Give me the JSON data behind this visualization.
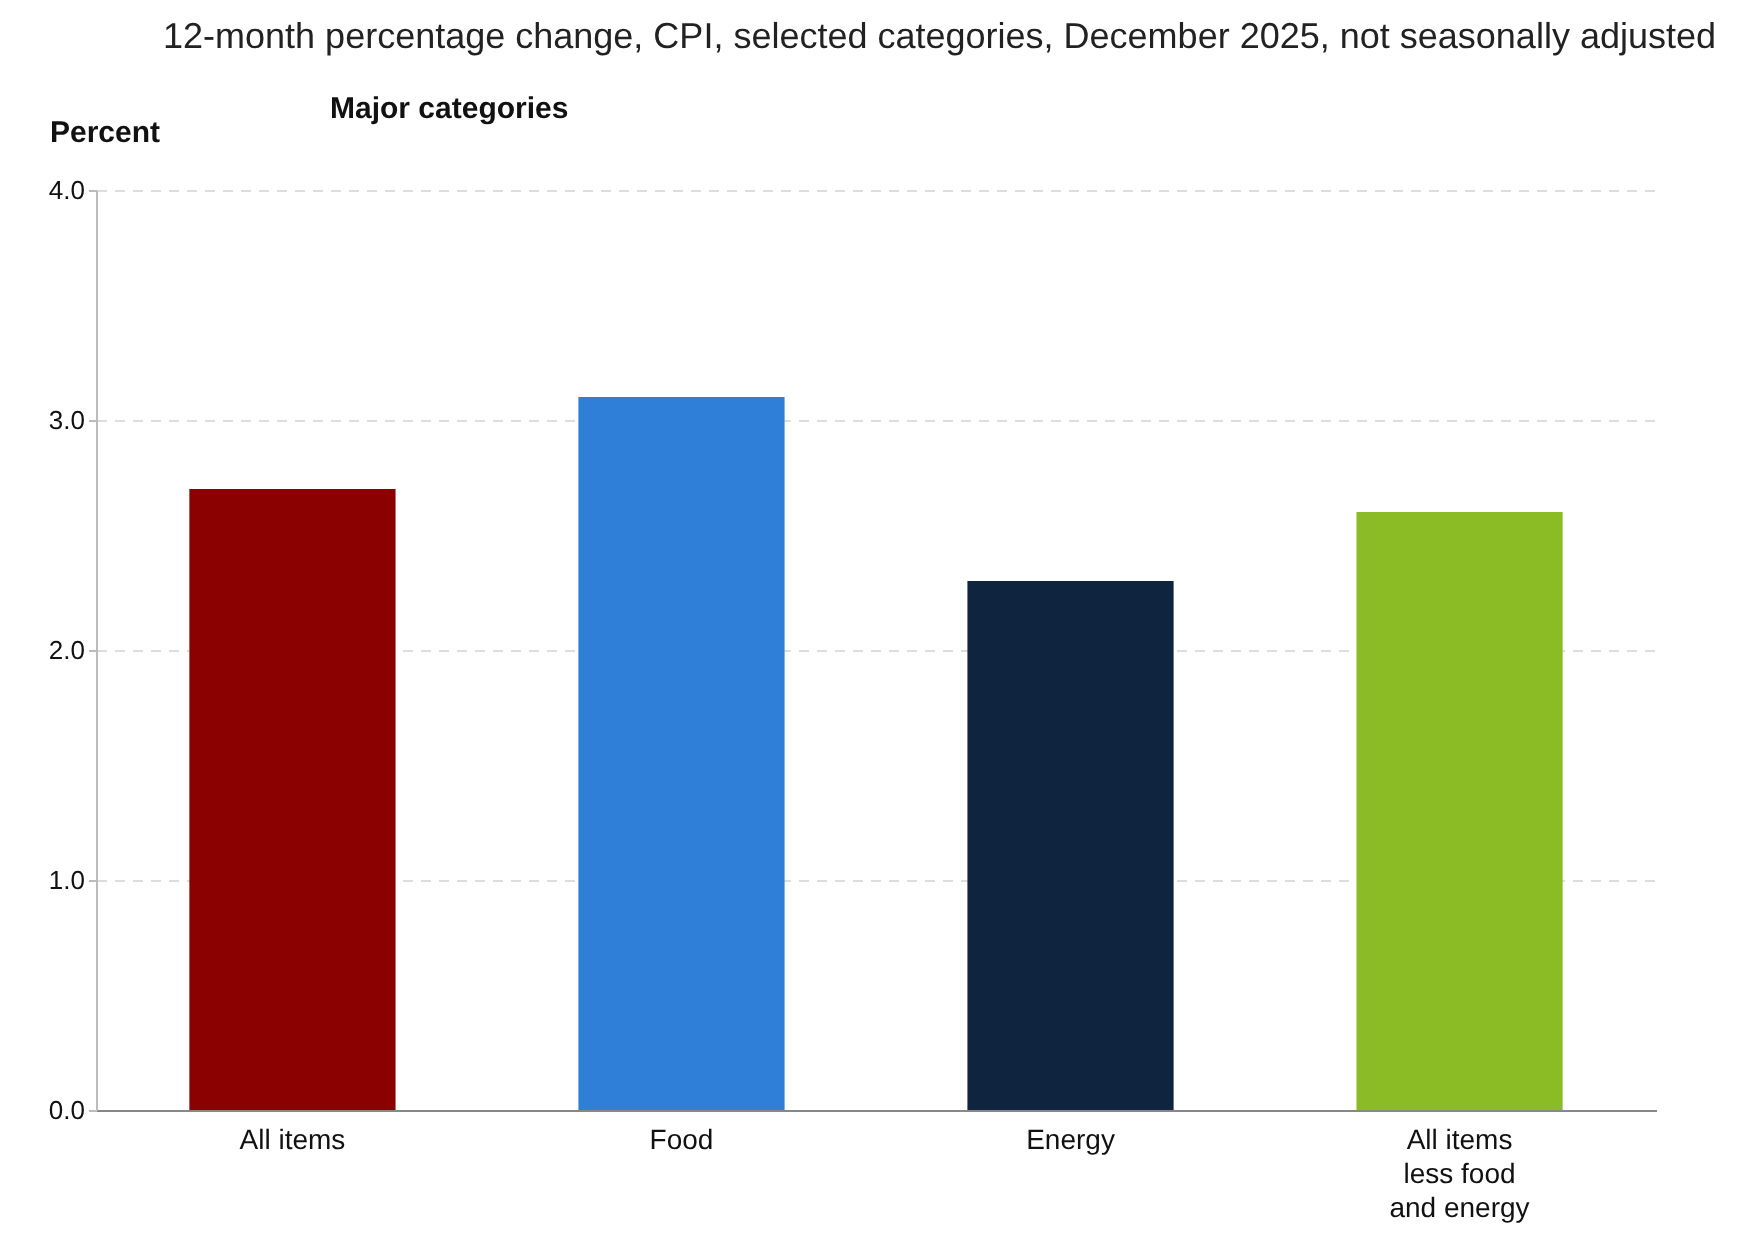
{
  "chart_data": {
    "type": "bar",
    "title": "12-month percentage change, CPI, selected categories, December 2025, not seasonally adjusted",
    "subtitle": "Major categories",
    "ylabel": "Percent",
    "categories": [
      "All items",
      "Food",
      "Energy",
      "All items less food and energy"
    ],
    "values": [
      2.7,
      3.1,
      2.3,
      2.6
    ],
    "colors": [
      "#8b0000",
      "#2f7ed8",
      "#0f243e",
      "#8bbb25"
    ],
    "ylim": [
      0,
      4
    ],
    "yticks": [
      {
        "value": 0,
        "label": "0.0"
      },
      {
        "value": 1,
        "label": "1.0"
      },
      {
        "value": 2,
        "label": "2.0"
      },
      {
        "value": 3,
        "label": "3.0"
      },
      {
        "value": 4,
        "label": "4.0"
      }
    ],
    "grid": "y",
    "legend": false
  }
}
